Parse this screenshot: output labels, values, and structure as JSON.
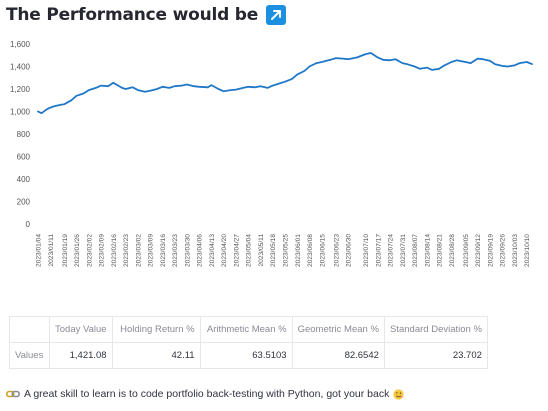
{
  "header": {
    "title": "The Performance would be",
    "title_icon": "arrow-up-right-icon",
    "badge_color": "#1c8fe0"
  },
  "chart_data": {
    "type": "line",
    "title": "",
    "xlabel": "",
    "ylabel": "",
    "ylim": [
      0,
      1600
    ],
    "yticks": [
      0,
      200,
      400,
      600,
      800,
      1000,
      1200,
      1400,
      1600
    ],
    "ytick_labels": [
      "0",
      "200",
      "400",
      "600",
      "800",
      "1,000",
      "1,200",
      "1,400",
      "1,600"
    ],
    "grid": false,
    "line_color": "#1f77c8",
    "xtick_labels": [
      "2023/01/04",
      "2023/01/11",
      "2023/01/19",
      "2023/01/26",
      "2023/02/02",
      "2023/02/09",
      "2023/02/16",
      "2023/02/23",
      "2023/03/02",
      "2023/03/09",
      "2023/03/16",
      "2023/03/23",
      "2023/03/30",
      "2023/04/06",
      "2023/04/13",
      "2023/04/20",
      "2023/04/27",
      "2023/05/04",
      "2023/05/11",
      "2023/05/18",
      "2023/05/25",
      "2023/06/01",
      "2023/06/08",
      "2023/06/15",
      "2023/06/23",
      "2023/06/30",
      "2023/07/10",
      "2023/07/17",
      "2023/07/24",
      "2023/07/31",
      "2023/08/07",
      "2023/08/14",
      "2023/08/21",
      "2023/08/28",
      "2023/09/05",
      "2023/09/12",
      "2023/09/19",
      "2023/09/26",
      "2023/10/03",
      "2023/10/10"
    ],
    "series": [
      {
        "x": [
          "2023/01/04",
          "2023/01/06",
          "2023/01/09",
          "2023/01/11",
          "2023/01/13",
          "2023/01/17",
          "2023/01/19",
          "2023/01/23",
          "2023/01/26",
          "2023/01/30",
          "2023/02/02",
          "2023/02/06",
          "2023/02/09",
          "2023/02/13",
          "2023/02/16",
          "2023/02/21",
          "2023/02/23",
          "2023/02/27",
          "2023/03/02",
          "2023/03/06",
          "2023/03/09",
          "2023/03/13",
          "2023/03/16",
          "2023/03/20",
          "2023/03/23",
          "2023/03/27",
          "2023/03/30",
          "2023/04/03",
          "2023/04/06",
          "2023/04/11",
          "2023/04/13",
          "2023/04/17",
          "2023/04/20",
          "2023/04/24",
          "2023/04/27",
          "2023/05/01",
          "2023/05/04",
          "2023/05/08",
          "2023/05/11",
          "2023/05/15",
          "2023/05/18",
          "2023/05/22",
          "2023/05/25",
          "2023/05/29",
          "2023/06/01",
          "2023/06/05",
          "2023/06/08",
          "2023/06/12",
          "2023/06/15",
          "2023/06/20",
          "2023/06/23",
          "2023/06/27",
          "2023/06/30",
          "2023/07/05",
          "2023/07/10",
          "2023/07/13",
          "2023/07/17",
          "2023/07/20",
          "2023/07/24",
          "2023/07/27",
          "2023/07/31",
          "2023/08/03",
          "2023/08/07",
          "2023/08/10",
          "2023/08/14",
          "2023/08/17",
          "2023/08/21",
          "2023/08/24",
          "2023/08/28",
          "2023/08/31",
          "2023/09/05",
          "2023/09/08",
          "2023/09/12",
          "2023/09/15",
          "2023/09/19",
          "2023/09/22",
          "2023/09/26",
          "2023/09/29",
          "2023/10/03",
          "2023/10/06",
          "2023/10/10",
          "2023/10/13"
        ],
        "values": [
          1000,
          985,
          1020,
          1035,
          1045,
          1060,
          1065,
          1100,
          1140,
          1160,
          1190,
          1210,
          1230,
          1225,
          1255,
          1210,
          1200,
          1215,
          1190,
          1175,
          1185,
          1200,
          1220,
          1210,
          1225,
          1230,
          1240,
          1225,
          1220,
          1215,
          1235,
          1200,
          1180,
          1190,
          1195,
          1210,
          1220,
          1215,
          1225,
          1210,
          1230,
          1250,
          1265,
          1290,
          1330,
          1360,
          1400,
          1430,
          1440,
          1460,
          1475,
          1470,
          1465,
          1480,
          1510,
          1520,
          1480,
          1460,
          1455,
          1465,
          1430,
          1420,
          1400,
          1380,
          1390,
          1370,
          1380,
          1410,
          1440,
          1455,
          1440,
          1430,
          1470,
          1465,
          1450,
          1420,
          1405,
          1400,
          1410,
          1430,
          1440,
          1421
        ]
      }
    ]
  },
  "stats_table": {
    "headers": [
      "",
      "Today Value",
      "Holding Return %",
      "Arithmetic Mean %",
      "Geometric Mean %",
      "Standard Deviation %"
    ],
    "rows": [
      {
        "label": "Values",
        "cells": [
          "1,421.08",
          "42.11",
          "63.5103",
          "82.6542",
          "23.702"
        ]
      }
    ]
  },
  "footer": {
    "text": "A great skill to learn is to code portfolio back-testing with Python, got your back",
    "leading_icon": "link-icon",
    "trailing_icon": "winking-face-icon"
  }
}
